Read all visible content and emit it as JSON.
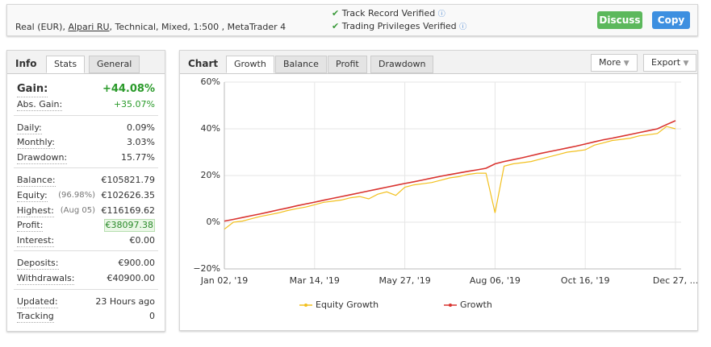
{
  "header": {
    "account_prefix": "Real (EUR),",
    "broker": "Alpari RU",
    "account_suffix": ", Technical, Mixed, 1:500 , MetaTrader 4",
    "verifications": [
      "Track Record Verified",
      "Trading Privileges Verified"
    ],
    "buttons": [
      "Discuss",
      "Copy"
    ]
  },
  "info": {
    "tabs": [
      "Info",
      "Stats",
      "General"
    ],
    "groups": [
      [
        {
          "label": "Gain:",
          "value": "+44.08%"
        },
        {
          "label": "Abs. Gain:",
          "value": "+35.07%"
        }
      ],
      [
        {
          "label": "Daily:",
          "value": "0.09%"
        },
        {
          "label": "Monthly:",
          "value": "3.03%"
        },
        {
          "label": "Drawdown:",
          "value": "15.77%"
        }
      ],
      [
        {
          "label": "Balance:",
          "value": "€105821.79"
        },
        {
          "label": "Equity:",
          "note": "(96.98%)",
          "value": "€102626.35"
        },
        {
          "label": "Highest:",
          "note": "(Aug 05)",
          "value": "€116169.62"
        },
        {
          "label": "Profit:",
          "value": "€38097.38"
        },
        {
          "label": "Interest:",
          "value": "€0.00"
        }
      ],
      [
        {
          "label": "Deposits:",
          "value": "€900.00"
        },
        {
          "label": "Withdrawals:",
          "value": "€40900.00"
        }
      ],
      [
        {
          "label": "Updated:",
          "value": "23 Hours ago"
        },
        {
          "label": "Tracking",
          "value": "0"
        }
      ]
    ]
  },
  "chart_panel": {
    "label": "Chart",
    "tabs": [
      "Growth",
      "Balance",
      "Profit",
      "Drawdown"
    ],
    "menus": [
      "More",
      "Export"
    ]
  },
  "chart_data": {
    "type": "line",
    "categories": [
      "Jan 02, '19",
      null,
      null,
      null,
      null,
      null,
      null,
      null,
      null,
      null,
      "Mar 14, '19",
      null,
      null,
      null,
      null,
      null,
      null,
      null,
      null,
      null,
      "May 27, '19",
      null,
      null,
      null,
      null,
      null,
      null,
      null,
      null,
      null,
      "Aug 06, '19",
      null,
      null,
      null,
      null,
      null,
      null,
      null,
      null,
      null,
      "Oct 16, '19",
      null,
      null,
      null,
      null,
      null,
      null,
      null,
      null,
      null,
      "Dec 27, ..."
    ],
    "series": [
      {
        "name": "Equity Growth",
        "color": "#f2c01e",
        "values": [
          -3,
          0,
          0.5,
          1.5,
          2.5,
          3.2,
          4,
          5,
          5.8,
          6.5,
          7.5,
          8.5,
          9,
          9.5,
          10.5,
          11,
          10,
          12,
          13,
          11.5,
          15,
          16,
          16.5,
          17,
          18,
          19,
          19.5,
          20.5,
          21,
          21,
          4,
          24,
          25,
          25.5,
          26,
          27,
          28,
          29,
          30,
          30.5,
          31,
          33,
          34,
          35,
          35.5,
          36,
          37,
          37.5,
          38,
          41,
          40
        ]
      },
      {
        "name": "Growth",
        "color": "#d9332f",
        "values": [
          0.5,
          1.2,
          2,
          2.8,
          3.6,
          4.4,
          5.3,
          6.1,
          7,
          7.8,
          8.6,
          9.4,
          10.2,
          11,
          11.8,
          12.6,
          13.4,
          14.2,
          15,
          15.8,
          16.6,
          17.3,
          18.1,
          18.9,
          19.7,
          20.4,
          21.1,
          21.8,
          22.4,
          23.1,
          25,
          26,
          26.8,
          27.6,
          28.5,
          29.4,
          30.2,
          31,
          31.8,
          32.6,
          33.5,
          34.4,
          35.3,
          36,
          36.8,
          37.6,
          38.4,
          39.2,
          40,
          41.8,
          43.5
        ]
      }
    ],
    "ylim": [
      -20,
      60
    ],
    "yticks": [
      {
        "value": -20,
        "label": "−20%"
      },
      {
        "value": 0,
        "label": "0%"
      },
      {
        "value": 20,
        "label": "20%"
      },
      {
        "value": 40,
        "label": "40%"
      },
      {
        "value": 60,
        "label": "60%"
      }
    ],
    "grid": true
  }
}
